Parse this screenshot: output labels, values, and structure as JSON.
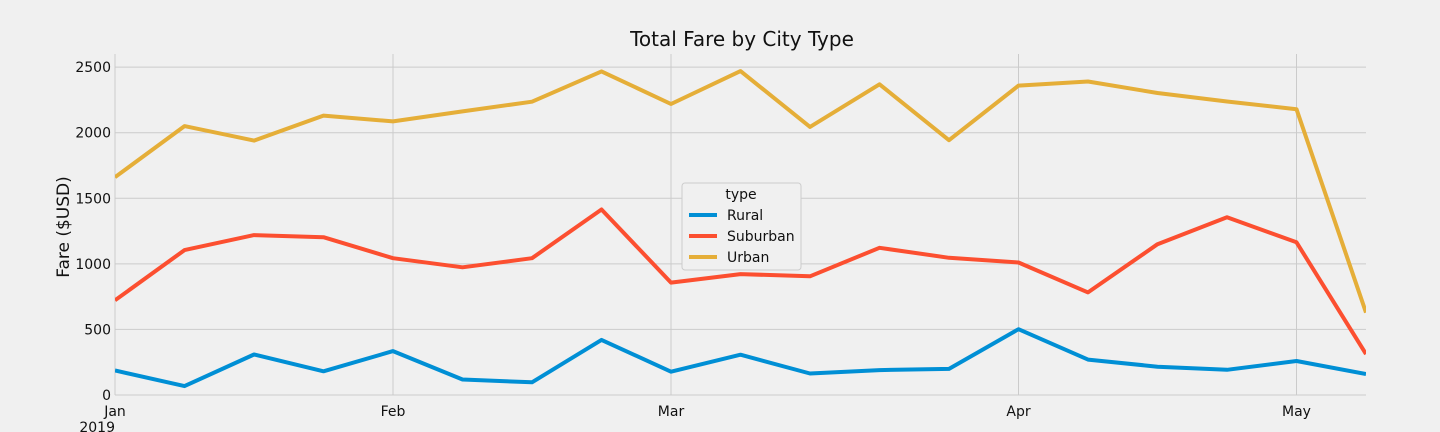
{
  "chart_data": {
    "type": "line",
    "title": "Total Fare by City Type",
    "xlabel": "",
    "ylabel": "Fare ($USD)",
    "ylim": [
      0,
      2600
    ],
    "yticks": [
      0,
      500,
      1000,
      1500,
      2000,
      2500
    ],
    "grid": true,
    "legend": {
      "title": "type",
      "placement": "center"
    },
    "x": [
      "2019-01-06",
      "2019-01-13",
      "2019-01-20",
      "2019-01-27",
      "2019-02-03",
      "2019-02-10",
      "2019-02-17",
      "2019-02-24",
      "2019-03-03",
      "2019-03-10",
      "2019-03-17",
      "2019-03-24",
      "2019-03-31",
      "2019-04-07",
      "2019-04-14",
      "2019-04-21",
      "2019-04-28",
      "2019-05-05",
      "2019-05-12"
    ],
    "xlim": [
      "2019-01-06",
      "2019-05-12"
    ],
    "xticks": [
      {
        "date": "2019-01-06",
        "label": "Jan",
        "sublabel": "2019"
      },
      {
        "date": "2019-02-03",
        "label": "Feb",
        "sublabel": ""
      },
      {
        "date": "2019-03-03",
        "label": "Mar",
        "sublabel": ""
      },
      {
        "date": "2019-04-07",
        "label": "Apr",
        "sublabel": ""
      },
      {
        "date": "2019-05-05",
        "label": "May",
        "sublabel": ""
      }
    ],
    "series": [
      {
        "name": "Rural",
        "color": "#008fd5",
        "values": [
          187,
          68,
          309,
          181,
          335,
          118,
          97,
          420,
          178,
          307,
          164,
          190,
          199,
          502,
          270,
          216,
          192,
          259,
          160
        ]
      },
      {
        "name": "Suburban",
        "color": "#fc4f30",
        "values": [
          722,
          1105,
          1219,
          1203,
          1043,
          974,
          1043,
          1414,
          857,
          922,
          905,
          1122,
          1046,
          1010,
          782,
          1150,
          1356,
          1164,
          312
        ]
      },
      {
        "name": "Urban",
        "color": "#e5ae38",
        "values": [
          1661,
          2050,
          1940,
          2130,
          2086,
          2162,
          2236,
          2467,
          2219,
          2470,
          2044,
          2369,
          1943,
          2359,
          2390,
          2303,
          2238,
          2179,
          628
        ]
      }
    ]
  }
}
